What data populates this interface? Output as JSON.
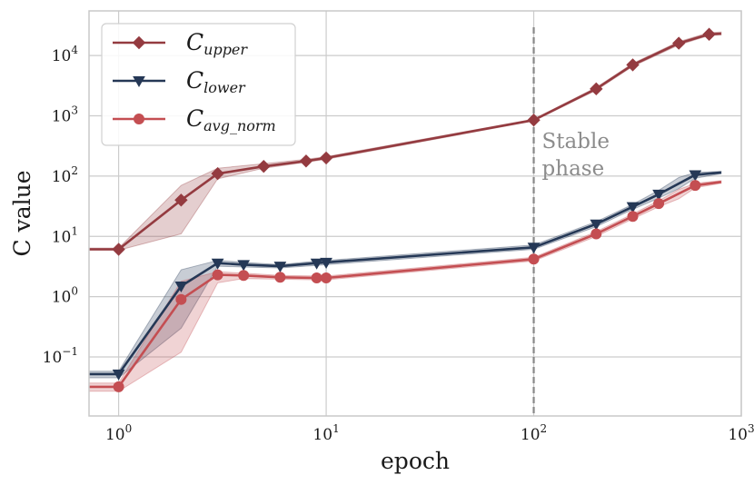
{
  "chart_data": {
    "type": "line",
    "title": "",
    "xlabel": "epoch",
    "ylabel": "C value",
    "xscale": "log",
    "yscale": "log",
    "xlim": [
      0.72,
      1000
    ],
    "ylim": [
      0.0105,
      55000
    ],
    "grid": true,
    "legend_position": "top-left",
    "x_ticks": [
      {
        "base": "10",
        "exp": "0",
        "value": 1
      },
      {
        "base": "10",
        "exp": "1",
        "value": 10
      },
      {
        "base": "10",
        "exp": "2",
        "value": 100
      },
      {
        "base": "10",
        "exp": "3",
        "value": 1000
      }
    ],
    "y_ticks": [
      {
        "base": "10",
        "exp": "−1",
        "value": 0.1
      },
      {
        "base": "10",
        "exp": "0",
        "value": 1
      },
      {
        "base": "10",
        "exp": "1",
        "value": 10
      },
      {
        "base": "10",
        "exp": "2",
        "value": 100
      },
      {
        "base": "10",
        "exp": "3",
        "value": 1000
      },
      {
        "base": "10",
        "exp": "4",
        "value": 10000
      }
    ],
    "vline": {
      "x": 100,
      "label_line1": "Stable",
      "label_line2": "phase"
    },
    "series": [
      {
        "name": "C_upper",
        "label_main": "C",
        "label_sub": "upper",
        "color": "#943b40",
        "marker": "diamond",
        "line_x": [
          0.72,
          1,
          2,
          3,
          5,
          8,
          10,
          100,
          200,
          300,
          500,
          700,
          800
        ],
        "line_y": [
          6.1,
          6.1,
          40,
          110,
          145,
          178,
          200,
          850,
          2800,
          7000,
          16000,
          22500,
          23000
        ],
        "marker_x": [
          1,
          2,
          3,
          5,
          8,
          10,
          100,
          200,
          300,
          500,
          700
        ],
        "marker_y": [
          6.1,
          40,
          110,
          145,
          178,
          200,
          850,
          2800,
          7000,
          16000,
          22500
        ],
        "band_x": [
          0.72,
          1,
          2,
          3,
          5,
          8,
          10,
          100,
          200,
          300,
          500,
          700,
          800
        ],
        "band_low": [
          5.9,
          5.9,
          11,
          90,
          135,
          170,
          190,
          820,
          2650,
          6600,
          15000,
          21500,
          22000
        ],
        "band_high": [
          6.4,
          6.4,
          70,
          135,
          160,
          190,
          210,
          880,
          2950,
          7400,
          17000,
          24000,
          24500
        ]
      },
      {
        "name": "C_lower",
        "label_main": "C",
        "label_sub": "lower",
        "color": "#253856",
        "marker": "triangle-down",
        "line_x": [
          0.72,
          1,
          2,
          3,
          4,
          6,
          9,
          10,
          100,
          200,
          300,
          400,
          600,
          800
        ],
        "line_y": [
          0.052,
          0.052,
          1.5,
          3.6,
          3.4,
          3.2,
          3.6,
          3.7,
          6.6,
          16,
          31,
          50,
          105,
          115
        ],
        "marker_x": [
          1,
          2,
          3,
          4,
          6,
          9,
          10,
          100,
          200,
          300,
          400,
          600
        ],
        "marker_y": [
          0.052,
          1.5,
          3.6,
          3.4,
          3.2,
          3.6,
          3.7,
          6.6,
          16,
          31,
          50,
          105
        ],
        "band_x": [
          0.72,
          1,
          2,
          3,
          4,
          6,
          9,
          10,
          100,
          200,
          300,
          400,
          500,
          600,
          800
        ],
        "band_low": [
          0.045,
          0.045,
          0.3,
          3.2,
          3.1,
          3.0,
          3.3,
          3.4,
          6.1,
          14.5,
          28,
          43,
          62,
          92,
          110
        ],
        "band_high": [
          0.058,
          0.058,
          2.8,
          4.0,
          3.7,
          3.4,
          3.9,
          4.0,
          7.2,
          17.5,
          34,
          58,
          95,
          115,
          120
        ]
      },
      {
        "name": "C_avg_norm",
        "label_main": "C",
        "label_sub": "avg_norm",
        "color": "#c44e52",
        "marker": "circle",
        "line_x": [
          0.72,
          1,
          2,
          3,
          4,
          6,
          9,
          10,
          100,
          200,
          300,
          400,
          600,
          800
        ],
        "line_y": [
          0.032,
          0.032,
          0.9,
          2.3,
          2.25,
          2.1,
          2.05,
          2.05,
          4.2,
          11,
          21.5,
          35,
          70,
          80
        ],
        "marker_x": [
          1,
          2,
          3,
          4,
          6,
          9,
          10,
          100,
          200,
          300,
          400,
          600
        ],
        "marker_y": [
          0.032,
          0.9,
          2.3,
          2.25,
          2.1,
          2.05,
          2.05,
          4.2,
          11,
          21.5,
          35,
          70
        ],
        "band_x": [
          0.72,
          1,
          2,
          3,
          4,
          6,
          9,
          10,
          100,
          200,
          300,
          400,
          500,
          600,
          800
        ],
        "band_low": [
          0.027,
          0.027,
          0.12,
          1.7,
          2.0,
          1.95,
          1.9,
          1.9,
          3.9,
          10,
          19.5,
          31,
          42,
          64,
          76
        ],
        "band_high": [
          0.037,
          0.037,
          1.8,
          2.6,
          2.45,
          2.25,
          2.2,
          2.2,
          4.5,
          12,
          23.5,
          39,
          60,
          76,
          84
        ]
      }
    ]
  }
}
